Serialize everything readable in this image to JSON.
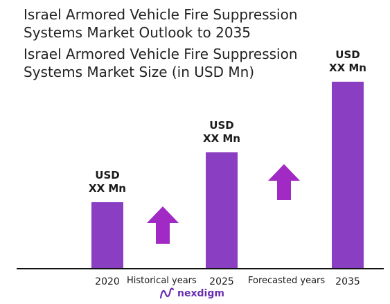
{
  "titles": {
    "line1": "Israel Armored Vehicle Fire Suppression",
    "line2": "Systems Market Outlook to 2035",
    "line3": "Israel Armored Vehicle Fire Suppression",
    "line4": "Systems Market Size (in USD Mn)"
  },
  "periods": {
    "historical": "Historical years",
    "forecasted": "Forecasted years"
  },
  "logo": {
    "text": "nexdigm"
  },
  "colors": {
    "bar": "#8a3fc2",
    "arrow": "#a12ac4",
    "axis": "#111111"
  },
  "chart_data": {
    "type": "bar",
    "categories": [
      "2020",
      "2025",
      "2035"
    ],
    "values": [
      100,
      176,
      284
    ],
    "value_labels": [
      [
        "USD",
        "XX Mn"
      ],
      [
        "USD",
        "XX Mn"
      ],
      [
        "USD",
        "XX Mn"
      ]
    ],
    "ylim": [
      0,
      300
    ],
    "grid": false,
    "legend": "none",
    "title": "",
    "xlabel": "",
    "ylabel": ""
  }
}
